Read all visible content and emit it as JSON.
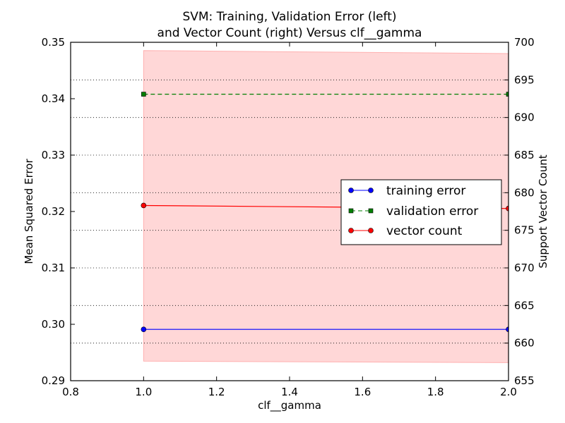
{
  "chart_data": {
    "type": "line",
    "title_lines": [
      "SVM: Training, Validation Error (left)",
      "and Vector Count (right) Versus clf__gamma"
    ],
    "xlabel": "clf__gamma",
    "ylabel_left": "Mean Squared Error",
    "ylabel_right": "Support Vector Count",
    "xlim": [
      0.8,
      2.0
    ],
    "ylim_left": [
      0.29,
      0.35
    ],
    "ylim_right": [
      655,
      700
    ],
    "x_ticks": [
      "0.8",
      "1.0",
      "1.2",
      "1.4",
      "1.6",
      "1.8",
      "2.0"
    ],
    "y_ticks_left": [
      "0.29",
      "0.30",
      "0.31",
      "0.32",
      "0.33",
      "0.34",
      "0.35"
    ],
    "y_ticks_right": [
      "655",
      "660",
      "665",
      "670",
      "675",
      "680",
      "685",
      "690",
      "695",
      "700"
    ],
    "grid_right": true,
    "legend_location": "center-right",
    "x": [
      1.0,
      2.0
    ],
    "series": [
      {
        "name": "training error",
        "axis": "left",
        "values": [
          0.2991,
          0.2991
        ],
        "color": "#0000ff",
        "marker": "circle",
        "dash": "solid"
      },
      {
        "name": "validation error",
        "axis": "left",
        "values": [
          0.3408,
          0.3408
        ],
        "color": "#007f00",
        "marker": "square",
        "dash": "dashed"
      },
      {
        "name": "vector count",
        "axis": "right",
        "values": [
          678.3,
          677.9
        ],
        "color": "#ff0000",
        "marker": "circle",
        "dash": "solid"
      }
    ],
    "vector_count_band": {
      "axis": "right",
      "low": [
        657.6,
        657.4
      ],
      "high": [
        698.9,
        698.5
      ],
      "color": "#ffb0b0"
    }
  }
}
